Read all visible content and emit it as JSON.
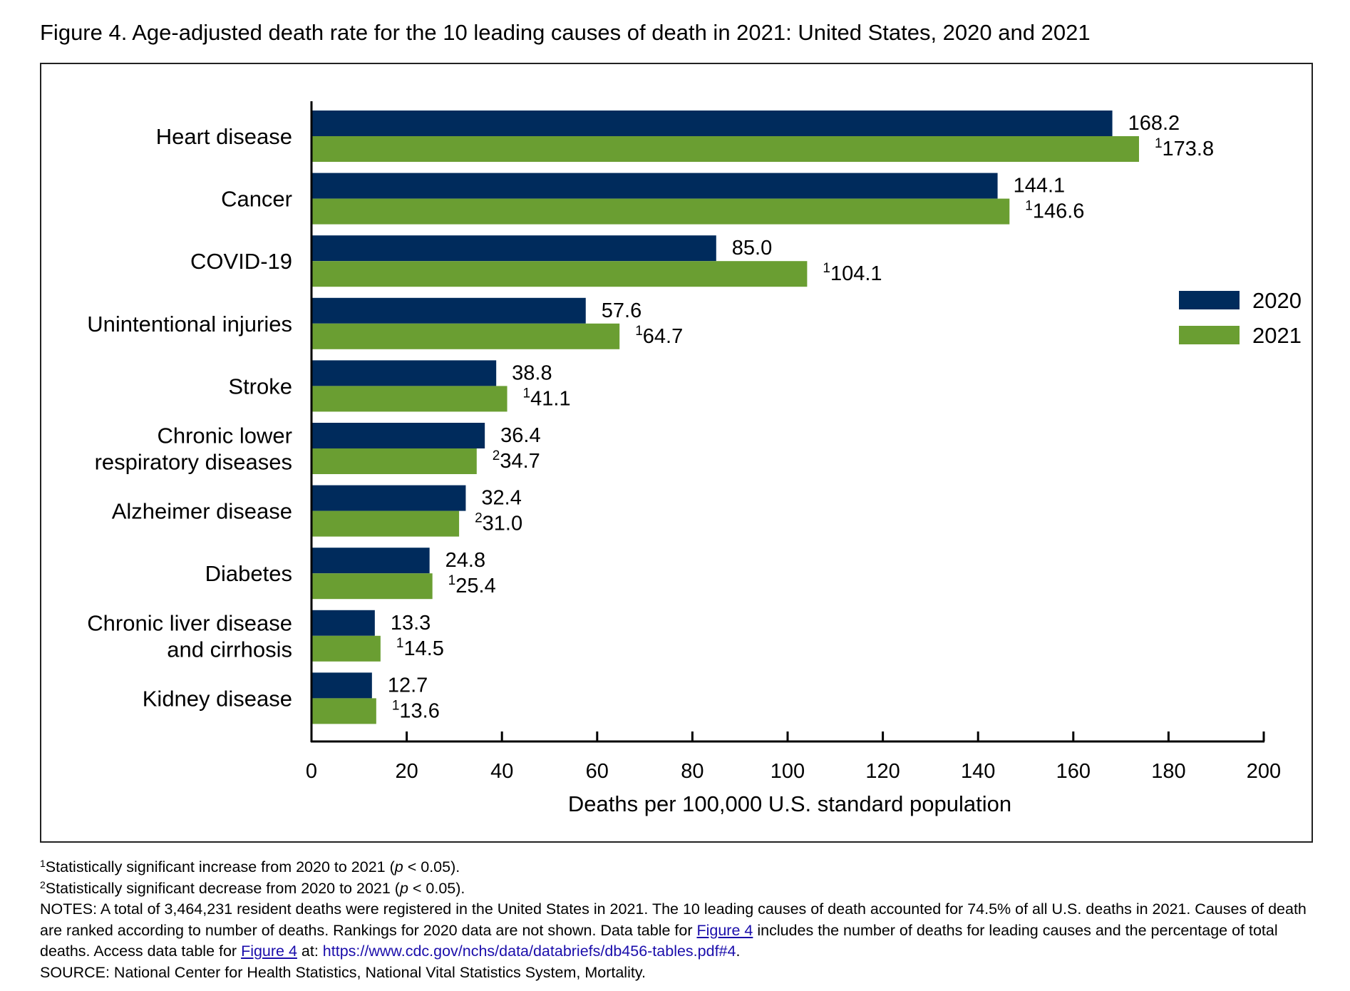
{
  "figure": {
    "title": "Figure 4. Age-adjusted death rate for the 10 leading causes of death in 2021: United States, 2020 and 2021"
  },
  "chart_data": {
    "type": "bar",
    "orientation": "horizontal",
    "title": "Figure 4. Age-adjusted death rate for the 10 leading causes of death in 2021: United States, 2020 and 2021",
    "xlabel": "Deaths per 100,000 U.S. standard population",
    "ylabel": "",
    "xlim": [
      0,
      200
    ],
    "xticks": [
      0,
      20,
      40,
      60,
      80,
      100,
      120,
      140,
      160,
      180,
      200
    ],
    "grid": false,
    "legend_position": "right",
    "categories": [
      [
        "Heart disease"
      ],
      [
        "Cancer"
      ],
      [
        "COVID-19"
      ],
      [
        "Unintentional injuries"
      ],
      [
        "Stroke"
      ],
      [
        "Chronic lower",
        "respiratory diseases"
      ],
      [
        "Alzheimer disease"
      ],
      [
        "Diabetes"
      ],
      [
        "Chronic liver disease",
        "and cirrhosis"
      ],
      [
        "Kidney disease"
      ]
    ],
    "series": [
      {
        "name": "2020",
        "color": "#002b5c",
        "values": [
          168.2,
          144.1,
          85.0,
          57.6,
          38.8,
          36.4,
          32.4,
          24.8,
          13.3,
          12.7
        ],
        "labels": [
          "168.2",
          "144.1",
          "85.0",
          "57.6",
          "38.8",
          "36.4",
          "32.4",
          "24.8",
          "13.3",
          "12.7"
        ],
        "markers": [
          "",
          "",
          "",
          "",
          "",
          "",
          "",
          "",
          "",
          ""
        ]
      },
      {
        "name": "2021",
        "color": "#6a9e32",
        "values": [
          173.8,
          146.6,
          104.1,
          64.7,
          41.1,
          34.7,
          31.0,
          25.4,
          14.5,
          13.6
        ],
        "labels": [
          "173.8",
          "146.6",
          "104.1",
          "64.7",
          "41.1",
          "34.7",
          "31.0",
          "25.4",
          "14.5",
          "13.6"
        ],
        "markers": [
          "1",
          "1",
          "1",
          "1",
          "1",
          "2",
          "2",
          "1",
          "1",
          "1"
        ]
      }
    ]
  },
  "notes": {
    "footnote1": {
      "marker": "1",
      "pre": "Statistically significant increase from 2020 to 2021 (",
      "p": "p",
      "post": " < 0.05)."
    },
    "footnote2": {
      "marker": "2",
      "pre": "Statistically significant decrease from 2020 to 2021 (",
      "p": "p",
      "post": " < 0.05)."
    },
    "notes_text_1": "NOTES: A total of 3,464,231 resident deaths were registered in the United States in 2021. The 10 leading causes of death accounted for 74.5% of all U.S. deaths in 2021. Causes of death are ranked according to number of deaths. Rankings for 2020 data are not shown. Data table for ",
    "notes_link_1": "Figure 4",
    "notes_text_2": " includes the number of deaths for leading causes and the percentage of total deaths. Access data table for ",
    "notes_link_2": "Figure 4",
    "notes_text_3": " at: ",
    "notes_url": "https://www.cdc.gov/nchs/data/databriefs/db456-tables.pdf#4",
    "notes_text_4": ".",
    "source": "SOURCE: National Center for Health Statistics, National Vital Statistics System, Mortality."
  }
}
